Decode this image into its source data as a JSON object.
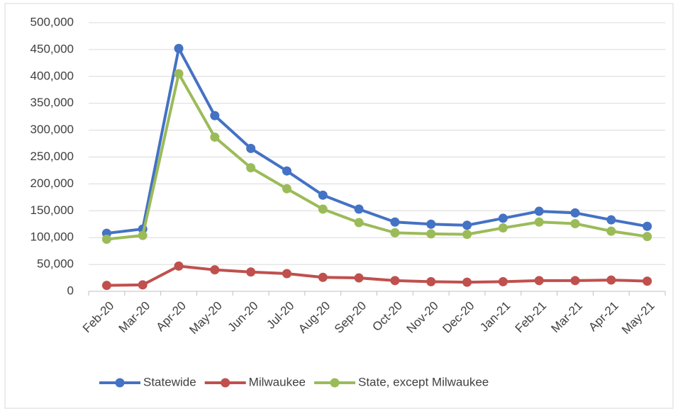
{
  "chart_data": {
    "type": "line",
    "categories": [
      "Feb-20",
      "Mar-20",
      "Apr-20",
      "May-20",
      "Jun-20",
      "Jul-20",
      "Aug-20",
      "Sep-20",
      "Oct-20",
      "Nov-20",
      "Dec-20",
      "Jan-21",
      "Feb-21",
      "Mar-21",
      "Apr-21",
      "May-21"
    ],
    "series": [
      {
        "name": "Statewide",
        "color": "#4472c4",
        "values": [
          108000,
          116000,
          452000,
          327000,
          266000,
          224000,
          179000,
          153000,
          129000,
          125000,
          123000,
          136000,
          149000,
          146000,
          133000,
          121000
        ]
      },
      {
        "name": "Milwaukee",
        "color": "#c0504d",
        "values": [
          11000,
          12000,
          47000,
          40000,
          36000,
          33000,
          26000,
          25000,
          20000,
          18000,
          17000,
          18000,
          20000,
          20000,
          21000,
          19000
        ]
      },
      {
        "name": "State, except Milwaukee",
        "color": "#9bbb59",
        "values": [
          97000,
          104000,
          405000,
          287000,
          230000,
          191000,
          153000,
          128000,
          109000,
          107000,
          106000,
          118000,
          129000,
          126000,
          112000,
          102000
        ]
      }
    ],
    "ylim": [
      0,
      500000
    ],
    "yticks": [
      0,
      {
        "value": 50000,
        "label": "50,000"
      },
      {
        "value": 100000,
        "label": "100,000"
      },
      {
        "value": 150000,
        "label": "150,000"
      },
      {
        "value": 200000,
        "label": "200,000"
      },
      {
        "value": 250000,
        "label": "250,000"
      },
      {
        "value": 300000,
        "label": "300,000"
      },
      {
        "value": 350000,
        "label": "350,000"
      },
      {
        "value": 400000,
        "label": "400,000"
      },
      {
        "value": 450000,
        "label": "450,000"
      },
      {
        "value": 500000,
        "label": "500,000"
      }
    ],
    "grid": true
  }
}
